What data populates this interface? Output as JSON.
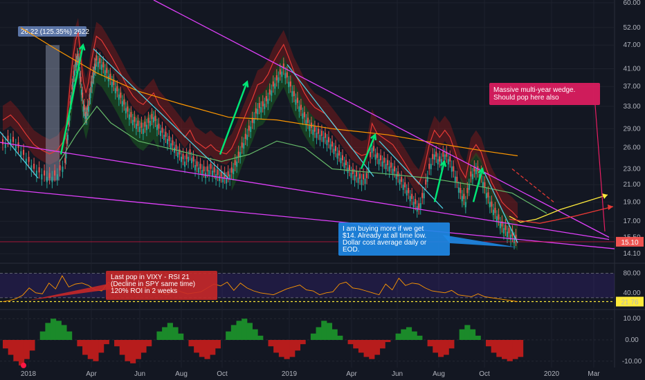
{
  "chart_data": [
    {
      "type": "line",
      "panel": "price",
      "y_axis_ticks": [
        "60.00",
        "52.00",
        "47.00",
        "41.00",
        "37.00",
        "33.00",
        "29.00",
        "26.00",
        "23.00",
        "21.00",
        "19.00",
        "17.00",
        "15.50",
        "14.10"
      ],
      "x_axis_ticks": [
        "2018",
        "Apr",
        "Jun",
        "Aug",
        "Oct",
        "2019",
        "Apr",
        "Jun",
        "Aug",
        "Oct",
        "2020",
        "Mar"
      ],
      "ylim": [
        13.5,
        60
      ],
      "log_scale": true,
      "last_price": "15.10",
      "colors": {
        "up": "#26a69a",
        "down": "#ef5350",
        "trend": "#e040fb",
        "arrow": "#00e676",
        "downtrend": "#4dd0e1",
        "ma": "#ff9800",
        "price_line": "#ff1744"
      },
      "series": [
        {
          "values": [
            [
              0,
              26.5
            ],
            [
              3,
              27.3
            ],
            [
              6,
              26
            ],
            [
              9,
              24.4
            ],
            [
              12,
              23
            ],
            [
              15,
              22.3
            ],
            [
              18,
              21.8
            ],
            [
              21,
              22.3
            ],
            [
              24,
              23.8
            ],
            [
              25,
              28
            ],
            [
              26,
              33
            ],
            [
              27,
              38
            ],
            [
              28,
              42
            ],
            [
              29,
              44
            ],
            [
              30,
              38
            ],
            [
              31,
              33
            ],
            [
              32,
              31
            ],
            [
              33,
              33
            ],
            [
              34,
              37
            ],
            [
              35,
              40
            ],
            [
              36,
              43
            ],
            [
              38,
              42
            ],
            [
              40,
              40
            ],
            [
              42,
              38
            ],
            [
              44,
              36
            ],
            [
              46,
              34
            ],
            [
              48,
              32
            ],
            [
              50,
              30.5
            ],
            [
              52,
              29.5
            ],
            [
              54,
              29
            ],
            [
              56,
              30
            ],
            [
              58,
              31
            ],
            [
              60,
              29
            ],
            [
              62,
              28
            ],
            [
              64,
              27
            ],
            [
              66,
              26
            ],
            [
              68,
              25
            ],
            [
              70,
              24
            ],
            [
              72,
              25
            ],
            [
              74,
              23.5
            ],
            [
              76,
              23
            ],
            [
              78,
              22.5
            ],
            [
              80,
              23
            ],
            [
              82,
              22.3
            ],
            [
              84,
              22
            ],
            [
              86,
              21.8
            ],
            [
              88,
              22.5
            ],
            [
              90,
              24
            ],
            [
              92,
              26
            ],
            [
              94,
              28
            ],
            [
              96,
              30
            ],
            [
              98,
              32.5
            ],
            [
              100,
              33
            ],
            [
              102,
              34.5
            ],
            [
              104,
              37
            ],
            [
              106,
              39
            ],
            [
              108,
              41
            ],
            [
              110,
              38
            ],
            [
              112,
              35
            ],
            [
              114,
              33
            ],
            [
              116,
              31
            ],
            [
              118,
              29.5
            ],
            [
              120,
              28.5
            ],
            [
              122,
              28
            ],
            [
              124,
              27.5
            ],
            [
              126,
              26.5
            ],
            [
              128,
              25.5
            ],
            [
              130,
              24.5
            ],
            [
              132,
              23.5
            ],
            [
              134,
              22.5
            ],
            [
              136,
              22
            ],
            [
              138,
              21.6
            ],
            [
              140,
              21.8
            ],
            [
              142,
              26
            ],
            [
              144,
              24.5
            ],
            [
              146,
              24
            ],
            [
              148,
              23.5
            ],
            [
              150,
              23
            ],
            [
              152,
              22
            ],
            [
              154,
              21
            ],
            [
              156,
              20
            ],
            [
              158,
              19
            ],
            [
              160,
              18.3
            ],
            [
              162,
              20
            ],
            [
              164,
              23
            ],
            [
              166,
              25
            ],
            [
              168,
              24
            ],
            [
              170,
              25
            ],
            [
              172,
              24
            ],
            [
              174,
              22
            ],
            [
              176,
              20
            ],
            [
              178,
              19
            ],
            [
              180,
              22
            ],
            [
              182,
              23
            ],
            [
              184,
              22
            ],
            [
              186,
              20
            ],
            [
              188,
              18.5
            ],
            [
              190,
              17.5
            ],
            [
              192,
              16.5
            ],
            [
              194,
              16
            ],
            [
              196,
              15.6
            ],
            [
              198,
              15.1
            ]
          ],
          "label_callout": "26.22 (125.35%) 2622"
        }
      ],
      "annotations": [
        "Massive multi-year wedge. Should pop here also",
        "I am buying more if we get $14.  Already at all time low. Dollar cost average daily or EOD."
      ]
    },
    {
      "type": "line",
      "panel": "rsi",
      "y_axis_ticks": [
        "80.00",
        "40.00"
      ],
      "level_label": "21.76",
      "ylim": [
        10,
        95
      ],
      "color": "#ff9800",
      "values": [
        22,
        24,
        28,
        35,
        50,
        40,
        38,
        60,
        48,
        75,
        52,
        58,
        60,
        55,
        46,
        44,
        62,
        52,
        56,
        48,
        45,
        50,
        53,
        44,
        40,
        36,
        48,
        42,
        38,
        40,
        42,
        50,
        58,
        54,
        62,
        45,
        60,
        50,
        44,
        40,
        38,
        36,
        42,
        48,
        52,
        56,
        46,
        44,
        36,
        40,
        42,
        58,
        62,
        50,
        48,
        44,
        40,
        36,
        58,
        46,
        70,
        55,
        60,
        58,
        50,
        44,
        42,
        40,
        45,
        36,
        34,
        32,
        38,
        32,
        30,
        28,
        26,
        24,
        22
      ],
      "annotation": "Last pop in VIXY - RSI 21 (Decline in SPY same time) 120% ROI in 2 weeks"
    },
    {
      "type": "area",
      "panel": "oscillator",
      "y_axis_ticks": [
        "10.00",
        "0.00",
        "-10.00"
      ],
      "ylim": [
        -13,
        13
      ],
      "colors": {
        "positive": "#1b8a2a",
        "negative": "#b71c1c"
      },
      "values": [
        -4,
        -7,
        -10,
        -12,
        -9,
        -5,
        0,
        4,
        8,
        10,
        9,
        7,
        4,
        0,
        -3,
        -7,
        -9,
        -10,
        -6,
        -2,
        0,
        -3,
        -7,
        -10,
        -11,
        -9,
        -6,
        -3,
        0,
        4,
        6,
        8,
        6,
        3,
        0,
        -3,
        -6,
        -8,
        -9,
        -7,
        -4,
        0,
        4,
        7,
        9,
        10,
        8,
        5,
        2,
        0,
        -3,
        -6,
        -8,
        -9,
        -8,
        -5,
        -2,
        0,
        3,
        6,
        9,
        8,
        5,
        2,
        0,
        -2,
        -4,
        -6,
        -8,
        -9,
        -7,
        -4,
        -1,
        0,
        3,
        5,
        6,
        4,
        2,
        0,
        -3,
        -6,
        -8,
        -7,
        -4,
        0,
        5,
        7,
        5,
        2,
        0,
        -3,
        -6,
        -8,
        -9,
        -10,
        -9,
        -8
      ]
    }
  ]
}
